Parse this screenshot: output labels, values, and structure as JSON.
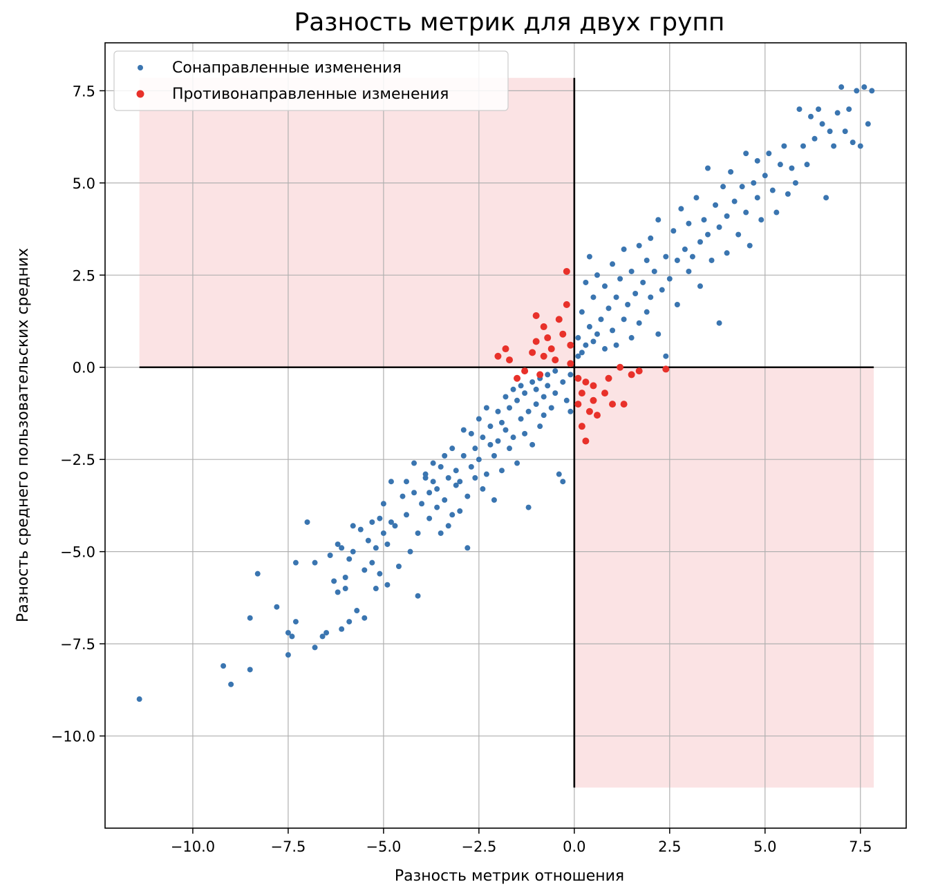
{
  "chart_data": {
    "type": "scatter",
    "title": "Разность метрик для двух групп",
    "xlabel": "Разность метрик отношения",
    "ylabel": "Разность среднего пользовательских средних",
    "xlim": [
      -12.3,
      8.7
    ],
    "ylim": [
      -12.5,
      8.8
    ],
    "xticks": [
      -10.0,
      -7.5,
      -5.0,
      -2.5,
      0.0,
      2.5,
      5.0,
      7.5
    ],
    "xtick_labels": [
      "−10.0",
      "−7.5",
      "−5.0",
      "−2.5",
      "0.0",
      "2.5",
      "5.0",
      "7.5"
    ],
    "yticks": [
      -10.0,
      -7.5,
      -5.0,
      -2.5,
      0.0,
      2.5,
      5.0,
      7.5
    ],
    "ytick_labels": [
      "−10.0",
      "−7.5",
      "−5.0",
      "−2.5",
      "0.0",
      "2.5",
      "5.0",
      "7.5"
    ],
    "grid": true,
    "legend_position": "top-left",
    "shaded_regions": [
      {
        "x": [
          -11.4,
          0.0
        ],
        "y": [
          0.0,
          7.85
        ],
        "color": "#fbe3e4"
      },
      {
        "x": [
          0.0,
          7.85
        ],
        "y": [
          -11.4,
          0.0
        ],
        "color": "#fbe3e4"
      }
    ],
    "reference_lines": [
      {
        "x": [
          -11.4,
          7.85
        ],
        "y": [
          0.0,
          0.0
        ],
        "color": "#000000"
      },
      {
        "x": [
          0.0,
          0.0
        ],
        "y": [
          -11.4,
          7.85
        ],
        "color": "#000000"
      }
    ],
    "series": [
      {
        "name": "Сонаправленные изменения",
        "color": "#3a75b0",
        "marker_size": 4,
        "points": [
          [
            -11.4,
            -9.0
          ],
          [
            -9.2,
            -8.1
          ],
          [
            -9.0,
            -8.6
          ],
          [
            -8.5,
            -8.2
          ],
          [
            -8.5,
            -6.8
          ],
          [
            -8.3,
            -5.6
          ],
          [
            -7.8,
            -6.5
          ],
          [
            -7.5,
            -7.2
          ],
          [
            -7.5,
            -7.8
          ],
          [
            -7.4,
            -7.3
          ],
          [
            -7.3,
            -5.3
          ],
          [
            -7.3,
            -6.9
          ],
          [
            -7.0,
            -4.2
          ],
          [
            -6.8,
            -5.3
          ],
          [
            -6.8,
            -7.6
          ],
          [
            -6.6,
            -7.3
          ],
          [
            -6.5,
            -7.2
          ],
          [
            -6.4,
            -5.1
          ],
          [
            -6.3,
            -5.8
          ],
          [
            -6.2,
            -4.8
          ],
          [
            -6.2,
            -6.1
          ],
          [
            -6.1,
            -7.1
          ],
          [
            -6.1,
            -4.9
          ],
          [
            -6.0,
            -5.7
          ],
          [
            -6.0,
            -6.0
          ],
          [
            -5.9,
            -5.2
          ],
          [
            -5.9,
            -6.9
          ],
          [
            -5.8,
            -4.3
          ],
          [
            -5.8,
            -5.0
          ],
          [
            -5.7,
            -6.6
          ],
          [
            -5.6,
            -4.4
          ],
          [
            -5.5,
            -6.8
          ],
          [
            -5.5,
            -5.5
          ],
          [
            -5.4,
            -4.7
          ],
          [
            -5.3,
            -5.3
          ],
          [
            -5.3,
            -4.2
          ],
          [
            -5.2,
            -6.0
          ],
          [
            -5.2,
            -4.9
          ],
          [
            -5.1,
            -4.1
          ],
          [
            -5.1,
            -5.6
          ],
          [
            -5.0,
            -4.5
          ],
          [
            -5.0,
            -3.7
          ],
          [
            -4.9,
            -4.8
          ],
          [
            -4.9,
            -5.9
          ],
          [
            -4.8,
            -3.1
          ],
          [
            -4.8,
            -4.2
          ],
          [
            -4.7,
            -4.3
          ],
          [
            -4.6,
            -5.4
          ],
          [
            -4.5,
            -3.5
          ],
          [
            -4.4,
            -3.1
          ],
          [
            -4.4,
            -4.0
          ],
          [
            -4.3,
            -5.0
          ],
          [
            -4.2,
            -3.4
          ],
          [
            -4.2,
            -2.6
          ],
          [
            -4.1,
            -4.5
          ],
          [
            -4.1,
            -6.2
          ],
          [
            -4.0,
            -3.7
          ],
          [
            -3.9,
            -3.0
          ],
          [
            -3.9,
            -2.9
          ],
          [
            -3.8,
            -4.1
          ],
          [
            -3.8,
            -3.4
          ],
          [
            -3.7,
            -3.1
          ],
          [
            -3.7,
            -2.6
          ],
          [
            -3.6,
            -3.8
          ],
          [
            -3.6,
            -3.3
          ],
          [
            -3.5,
            -4.5
          ],
          [
            -3.5,
            -2.7
          ],
          [
            -3.4,
            -3.6
          ],
          [
            -3.4,
            -2.4
          ],
          [
            -3.3,
            -4.3
          ],
          [
            -3.3,
            -3.0
          ],
          [
            -3.2,
            -4.0
          ],
          [
            -3.2,
            -2.2
          ],
          [
            -3.1,
            -3.2
          ],
          [
            -3.1,
            -2.8
          ],
          [
            -3.0,
            -3.9
          ],
          [
            -3.0,
            -3.1
          ],
          [
            -2.9,
            -2.4
          ],
          [
            -2.9,
            -1.7
          ],
          [
            -2.8,
            -4.9
          ],
          [
            -2.8,
            -3.5
          ],
          [
            -2.7,
            -1.8
          ],
          [
            -2.7,
            -2.7
          ],
          [
            -2.6,
            -3.0
          ],
          [
            -2.6,
            -2.2
          ],
          [
            -2.5,
            -1.4
          ],
          [
            -2.5,
            -2.5
          ],
          [
            -2.4,
            -3.3
          ],
          [
            -2.4,
            -1.9
          ],
          [
            -2.3,
            -2.9
          ],
          [
            -2.3,
            -1.1
          ],
          [
            -2.2,
            -2.1
          ],
          [
            -2.2,
            -1.6
          ],
          [
            -2.1,
            -3.6
          ],
          [
            -2.1,
            -2.4
          ],
          [
            -2.0,
            -1.2
          ],
          [
            -2.0,
            -2.0
          ],
          [
            -1.9,
            -1.5
          ],
          [
            -1.9,
            -2.8
          ],
          [
            -1.8,
            -0.8
          ],
          [
            -1.8,
            -1.7
          ],
          [
            -1.7,
            -2.2
          ],
          [
            -1.7,
            -1.1
          ],
          [
            -1.6,
            -0.6
          ],
          [
            -1.6,
            -1.9
          ],
          [
            -1.5,
            -0.9
          ],
          [
            -1.5,
            -2.6
          ],
          [
            -1.4,
            -1.4
          ],
          [
            -1.4,
            -0.5
          ],
          [
            -1.3,
            -1.8
          ],
          [
            -1.3,
            -0.7
          ],
          [
            -1.2,
            -1.2
          ],
          [
            -1.2,
            -3.8
          ],
          [
            -1.1,
            -0.4
          ],
          [
            -1.1,
            -2.1
          ],
          [
            -1.0,
            -1.0
          ],
          [
            -1.0,
            -0.6
          ],
          [
            -0.9,
            -1.6
          ],
          [
            -0.9,
            -0.3
          ],
          [
            -0.8,
            -0.8
          ],
          [
            -0.8,
            -1.3
          ],
          [
            -0.7,
            -0.2
          ],
          [
            -0.7,
            -0.5
          ],
          [
            -0.6,
            -1.1
          ],
          [
            -0.5,
            -0.7
          ],
          [
            -0.5,
            -0.1
          ],
          [
            -0.4,
            -2.9
          ],
          [
            -0.3,
            -3.1
          ],
          [
            -0.3,
            -0.4
          ],
          [
            -0.2,
            -0.9
          ],
          [
            -0.1,
            -0.2
          ],
          [
            -0.1,
            -1.2
          ],
          [
            0.1,
            0.3
          ],
          [
            0.1,
            0.8
          ],
          [
            0.2,
            0.4
          ],
          [
            0.2,
            1.5
          ],
          [
            0.3,
            2.3
          ],
          [
            0.3,
            0.6
          ],
          [
            0.4,
            1.1
          ],
          [
            0.4,
            3.0
          ],
          [
            0.5,
            0.7
          ],
          [
            0.5,
            1.9
          ],
          [
            0.6,
            2.5
          ],
          [
            0.6,
            0.9
          ],
          [
            0.7,
            1.3
          ],
          [
            0.8,
            2.2
          ],
          [
            0.8,
            0.5
          ],
          [
            0.9,
            1.6
          ],
          [
            1.0,
            2.8
          ],
          [
            1.0,
            1.0
          ],
          [
            1.1,
            1.9
          ],
          [
            1.1,
            0.6
          ],
          [
            1.2,
            2.4
          ],
          [
            1.3,
            1.3
          ],
          [
            1.3,
            3.2
          ],
          [
            1.4,
            1.7
          ],
          [
            1.5,
            0.8
          ],
          [
            1.5,
            2.6
          ],
          [
            1.6,
            2.0
          ],
          [
            1.7,
            1.2
          ],
          [
            1.7,
            3.3
          ],
          [
            1.8,
            2.3
          ],
          [
            1.9,
            1.5
          ],
          [
            1.9,
            2.9
          ],
          [
            2.0,
            3.5
          ],
          [
            2.0,
            1.9
          ],
          [
            2.1,
            2.6
          ],
          [
            2.2,
            0.9
          ],
          [
            2.2,
            4.0
          ],
          [
            2.3,
            2.1
          ],
          [
            2.4,
            3.0
          ],
          [
            2.4,
            0.3
          ],
          [
            2.5,
            2.4
          ],
          [
            2.6,
            3.7
          ],
          [
            2.7,
            2.9
          ],
          [
            2.7,
            1.7
          ],
          [
            2.8,
            4.3
          ],
          [
            2.9,
            3.2
          ],
          [
            3.0,
            2.6
          ],
          [
            3.0,
            3.9
          ],
          [
            3.1,
            3.0
          ],
          [
            3.2,
            4.6
          ],
          [
            3.3,
            3.4
          ],
          [
            3.3,
            2.2
          ],
          [
            3.4,
            4.0
          ],
          [
            3.5,
            5.4
          ],
          [
            3.5,
            3.6
          ],
          [
            3.6,
            2.9
          ],
          [
            3.7,
            4.4
          ],
          [
            3.8,
            3.8
          ],
          [
            3.8,
            1.2
          ],
          [
            3.9,
            4.9
          ],
          [
            4.0,
            4.1
          ],
          [
            4.0,
            3.1
          ],
          [
            4.1,
            5.3
          ],
          [
            4.2,
            4.5
          ],
          [
            4.3,
            3.6
          ],
          [
            4.4,
            4.9
          ],
          [
            4.5,
            5.8
          ],
          [
            4.5,
            4.2
          ],
          [
            4.6,
            3.3
          ],
          [
            4.7,
            5.0
          ],
          [
            4.8,
            4.6
          ],
          [
            4.8,
            5.6
          ],
          [
            4.9,
            4.0
          ],
          [
            5.0,
            5.2
          ],
          [
            5.1,
            5.8
          ],
          [
            5.2,
            4.8
          ],
          [
            5.3,
            4.2
          ],
          [
            5.4,
            5.5
          ],
          [
            5.5,
            6.0
          ],
          [
            5.6,
            4.7
          ],
          [
            5.7,
            5.4
          ],
          [
            5.8,
            5.0
          ],
          [
            5.9,
            7.0
          ],
          [
            6.0,
            6.0
          ],
          [
            6.1,
            5.5
          ],
          [
            6.2,
            6.8
          ],
          [
            6.3,
            6.2
          ],
          [
            6.4,
            7.0
          ],
          [
            6.5,
            6.6
          ],
          [
            6.6,
            4.6
          ],
          [
            6.7,
            6.4
          ],
          [
            6.8,
            6.0
          ],
          [
            6.9,
            6.9
          ],
          [
            7.0,
            7.6
          ],
          [
            7.1,
            6.4
          ],
          [
            7.2,
            7.0
          ],
          [
            7.3,
            6.1
          ],
          [
            7.4,
            7.5
          ],
          [
            7.5,
            6.0
          ],
          [
            7.6,
            7.6
          ],
          [
            7.7,
            6.6
          ],
          [
            7.8,
            7.5
          ]
        ]
      },
      {
        "name": "Противонаправленные изменения",
        "color": "#e8312a",
        "marker_size": 5,
        "points": [
          [
            -2.0,
            0.3
          ],
          [
            -1.8,
            0.5
          ],
          [
            -1.7,
            0.2
          ],
          [
            -1.5,
            -0.3
          ],
          [
            -1.3,
            -0.1
          ],
          [
            -1.1,
            0.4
          ],
          [
            -1.0,
            1.4
          ],
          [
            -1.0,
            0.7
          ],
          [
            -0.9,
            -0.2
          ],
          [
            -0.8,
            1.1
          ],
          [
            -0.8,
            0.3
          ],
          [
            -0.7,
            0.8
          ],
          [
            -0.6,
            0.5
          ],
          [
            -0.5,
            0.2
          ],
          [
            -0.4,
            1.3
          ],
          [
            -0.3,
            0.9
          ],
          [
            -0.2,
            1.7
          ],
          [
            -0.2,
            2.6
          ],
          [
            -0.1,
            0.1
          ],
          [
            -0.1,
            0.6
          ],
          [
            0.1,
            -0.3
          ],
          [
            0.1,
            -1.0
          ],
          [
            0.2,
            -0.7
          ],
          [
            0.2,
            -1.6
          ],
          [
            0.3,
            -0.4
          ],
          [
            0.3,
            -2.0
          ],
          [
            0.4,
            -1.2
          ],
          [
            0.5,
            -0.5
          ],
          [
            0.5,
            -0.9
          ],
          [
            0.6,
            -1.3
          ],
          [
            0.8,
            -0.7
          ],
          [
            0.9,
            -0.3
          ],
          [
            1.0,
            -1.0
          ],
          [
            1.2,
            0.0
          ],
          [
            1.3,
            -1.0
          ],
          [
            1.5,
            -0.2
          ],
          [
            1.7,
            -0.1
          ],
          [
            2.4,
            -0.05
          ]
        ]
      }
    ]
  }
}
